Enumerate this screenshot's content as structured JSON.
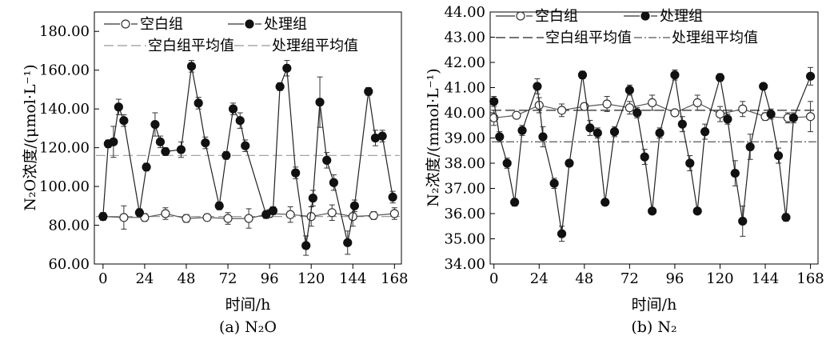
{
  "chart_data": [
    {
      "type": "line",
      "caption": "(a) N₂O",
      "xlabel": "时间/h",
      "ylabel": "N₂O浓度/(μmol·L⁻¹)",
      "xlim": [
        -5,
        172
      ],
      "ylim": [
        60,
        190
      ],
      "xticks": [
        "0",
        "24",
        "48",
        "72",
        "96",
        "120",
        "144",
        "168"
      ],
      "yticks": [
        "60.00",
        "80.00",
        "100.00",
        "120.00",
        "140.00",
        "160.00",
        "180.00"
      ],
      "legend": {
        "blank": "空白组",
        "treated": "处理组",
        "blank_mean": "空白组平均值",
        "treated_mean": "处理组平均值"
      },
      "blank_mean": 84.5,
      "treated_mean": 116.0,
      "series": [
        {
          "name": "空白组",
          "marker": "open-circle",
          "x": [
            0,
            12,
            24,
            36,
            48,
            60,
            72,
            84,
            96,
            108,
            120,
            132,
            144,
            156,
            168
          ],
          "y": [
            84.5,
            84.0,
            84.0,
            86.0,
            83.5,
            84.0,
            83.5,
            83.5,
            86.0,
            85.5,
            84.5,
            86.5,
            84.5,
            85.0,
            86.0
          ],
          "err": [
            2,
            6,
            2,
            3,
            2,
            1.5,
            3,
            5,
            2,
            4,
            5,
            4,
            5,
            2,
            3
          ]
        },
        {
          "name": "处理组",
          "marker": "filled-circle",
          "x": [
            0,
            3,
            6,
            9,
            12,
            21,
            25,
            30,
            33,
            36,
            45,
            51,
            55,
            59,
            67,
            71,
            75,
            79,
            82,
            94,
            98,
            102,
            106,
            111,
            117,
            121,
            125,
            129,
            133,
            141,
            145,
            153,
            157,
            161,
            167
          ],
          "y": [
            84.5,
            122,
            123,
            141,
            134,
            86.5,
            110,
            132,
            123,
            118,
            119,
            162,
            143,
            122.5,
            90,
            116,
            140,
            134,
            121,
            85.5,
            87.5,
            151.5,
            161,
            107,
            69.5,
            94,
            143.5,
            113.5,
            102,
            71,
            90,
            149,
            125,
            126,
            94.5
          ],
          "err": [
            2,
            2,
            8,
            4,
            3,
            2,
            2,
            6,
            3,
            2,
            4,
            3,
            3,
            3,
            2,
            2,
            3,
            4,
            3,
            2,
            2,
            2,
            4,
            3,
            5,
            4,
            13,
            4,
            4,
            6,
            3,
            2,
            4,
            3,
            3
          ]
        }
      ]
    },
    {
      "type": "line",
      "caption": "(b) N₂",
      "xlabel": "时间/h",
      "ylabel": "N₂浓度/(mmol·L⁻¹)",
      "xlim": [
        -2,
        172
      ],
      "ylim": [
        34,
        44
      ],
      "xticks": [
        "0",
        "24",
        "48",
        "72",
        "96",
        "120",
        "144",
        "168"
      ],
      "yticks": [
        "34.00",
        "35.00",
        "36.00",
        "37.00",
        "38.00",
        "39.00",
        "40.00",
        "41.00",
        "42.00",
        "43.00",
        "44.00"
      ],
      "legend": {
        "blank": "空白组",
        "treated": "处理组",
        "blank_mean": "空白组平均值",
        "treated_mean": "处理组平均值"
      },
      "blank_mean": 40.1,
      "treated_mean": 38.85,
      "series": [
        {
          "name": "空白组",
          "marker": "open-circle",
          "x": [
            0,
            12,
            24,
            36,
            48,
            60,
            72,
            84,
            96,
            108,
            120,
            132,
            144,
            156,
            168
          ],
          "y": [
            39.8,
            39.9,
            40.3,
            40.1,
            40.25,
            40.35,
            40.2,
            40.4,
            40.0,
            40.4,
            39.95,
            40.15,
            39.85,
            39.8,
            39.85
          ],
          "err": [
            0.3,
            0.1,
            0.3,
            0.25,
            0.1,
            0.3,
            0.25,
            0.3,
            0.1,
            0.3,
            0.3,
            0.3,
            0.15,
            0.2,
            0.6
          ]
        },
        {
          "name": "处理组",
          "marker": "filled-circle",
          "x": [
            0,
            3,
            7,
            11,
            15,
            23,
            26,
            32,
            36,
            40,
            47,
            51,
            55,
            59,
            64,
            72,
            76,
            80,
            84,
            88,
            96,
            100,
            104,
            108,
            112,
            120,
            124,
            128,
            132,
            136,
            143,
            147,
            151,
            155,
            159,
            168
          ],
          "y": [
            40.45,
            39.05,
            38.0,
            36.45,
            39.3,
            41.05,
            39.05,
            37.2,
            35.2,
            38.0,
            41.5,
            39.4,
            39.2,
            36.45,
            39.25,
            40.9,
            40.0,
            38.25,
            36.1,
            39.2,
            41.5,
            39.55,
            38.0,
            36.1,
            39.25,
            41.4,
            39.75,
            37.6,
            35.7,
            38.65,
            41.05,
            39.95,
            38.3,
            35.85,
            39.8,
            41.45
          ],
          "err": [
            0.2,
            0.2,
            0.2,
            0.15,
            0.2,
            0.3,
            0.4,
            0.2,
            0.3,
            0.1,
            0.15,
            0.3,
            0.2,
            0.1,
            0.2,
            0.2,
            0.2,
            0.3,
            0.1,
            0.2,
            0.2,
            0.3,
            0.3,
            0.1,
            0.3,
            0.15,
            0.2,
            0.5,
            0.6,
            0.5,
            0.1,
            0.2,
            0.3,
            0.15,
            0.2,
            0.35
          ]
        }
      ]
    }
  ]
}
